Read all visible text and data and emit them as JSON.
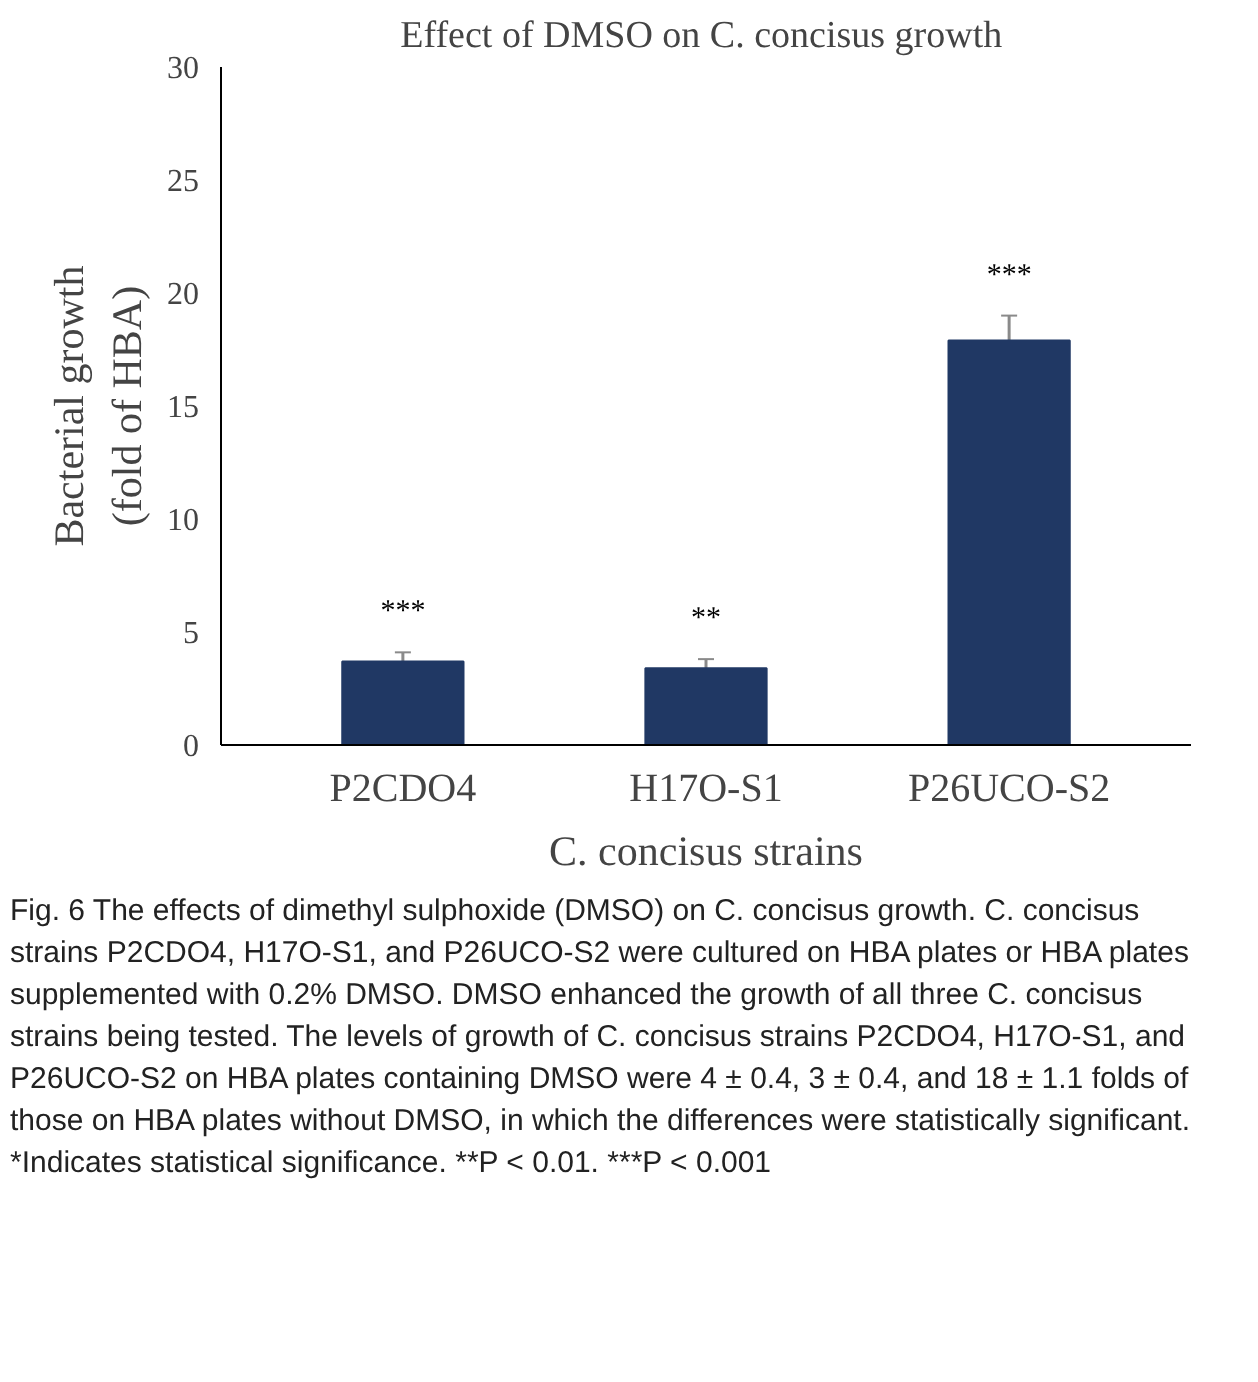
{
  "chart_data": {
    "type": "bar",
    "title": "Effect of DMSO on  C. concisus growth",
    "xlabel": "C. concisus strains",
    "ylabel": "Bacterial growth\n(fold of HBA)",
    "categories": [
      "P2CDO4",
      "H17O-S1",
      "P26UCO-S2"
    ],
    "values": [
      3.7,
      3.4,
      17.9
    ],
    "errors": [
      0.4,
      0.4,
      1.1
    ],
    "color": "#203864",
    "ylim": [
      0,
      30
    ],
    "yticks": [
      0,
      5,
      10,
      15,
      20,
      25,
      30
    ],
    "grid": false,
    "value_labels": [
      "***",
      "**",
      "***"
    ],
    "annotations": [
      "Fig. 6  The effects of dimethyl sulphoxide (DMSO) on C. concisus growth. C. concisus strains P2CDO4, H17O-S1, and P26UCO-S2 were cultured on HBA plates or HBA plates supplemented with 0.2% DMSO. DMSO enhanced the growth of all three C. concisus strains being tested. The levels of growth of C. concisus strains P2CDO4, H17O-S1, and P26UCO-S2 on HBA plates containing DMSO were 4 ± 0.4, 3 ± 0.4, and 18 ± 1.1 folds of those on HBA plates without DMSO, in which the differences were statistically significant. *Indicates statistical significance. **P < 0.01. ***P < 0.001"
    ]
  }
}
